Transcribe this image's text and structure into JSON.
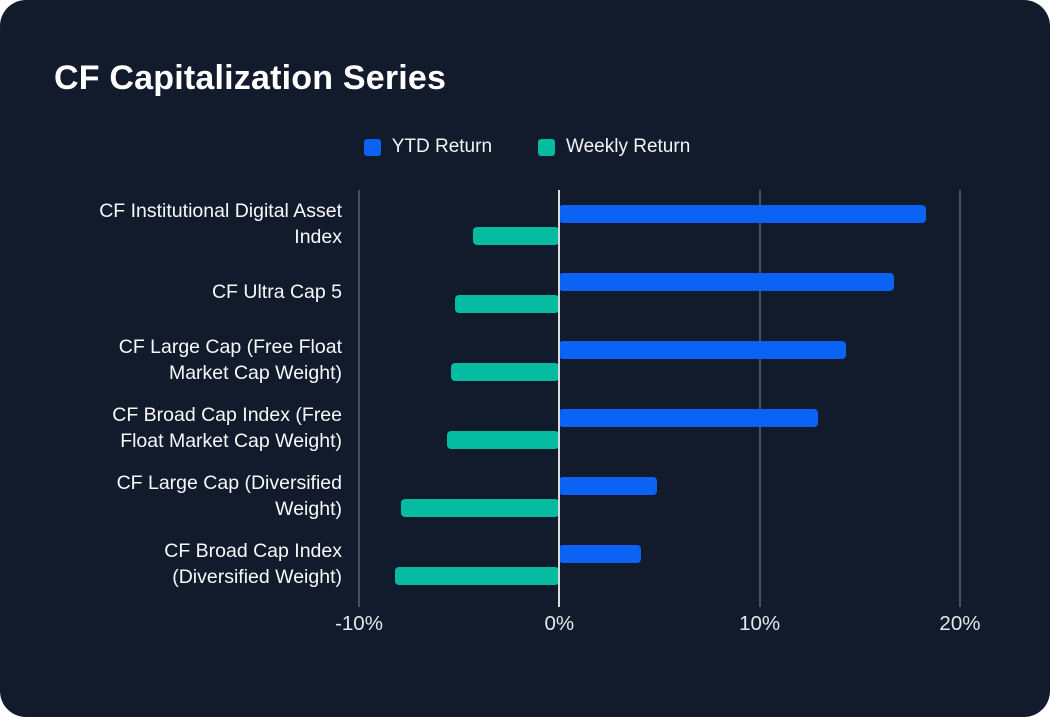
{
  "title": "CF Capitalization Series",
  "legend": [
    {
      "label": "YTD Return",
      "color": "#0B63F5"
    },
    {
      "label": "Weekly Return",
      "color": "#05BBA2"
    }
  ],
  "chart_data": {
    "type": "bar",
    "orientation": "horizontal",
    "title": "CF Capitalization Series",
    "categories": [
      "CF Institutional Digital Asset Index",
      "CF Ultra Cap 5",
      "CF Large Cap (Free Float Market Cap Weight)",
      "CF Broad Cap Index (Free Float Market Cap Weight)",
      "CF Large Cap (Diversified Weight)",
      "CF Broad Cap Index (Diversified Weight)"
    ],
    "series": [
      {
        "name": "YTD Return",
        "color": "#0B63F5",
        "values": [
          18.3,
          16.7,
          14.3,
          12.9,
          4.9,
          4.1
        ]
      },
      {
        "name": "Weekly Return",
        "color": "#05BBA2",
        "values": [
          -4.3,
          -5.2,
          -5.4,
          -5.6,
          -7.9,
          -8.2
        ]
      }
    ],
    "value_unit": "%",
    "x_ticks": [
      {
        "value": -10,
        "label": "-10%"
      },
      {
        "value": 0,
        "label": "0%"
      },
      {
        "value": 10,
        "label": "10%"
      },
      {
        "value": 20,
        "label": "20%"
      }
    ],
    "xlim": [
      -10.25,
      22
    ],
    "grid": "vertical",
    "legend_position": "top-center"
  },
  "colors": {
    "card_bg": "#111B2B",
    "page_bg": "#FFFFFF",
    "grid": "#47505F",
    "axis_line": "#D8DBE0",
    "text": "#F7F8FA",
    "tick_text": "#E4E7EB"
  }
}
